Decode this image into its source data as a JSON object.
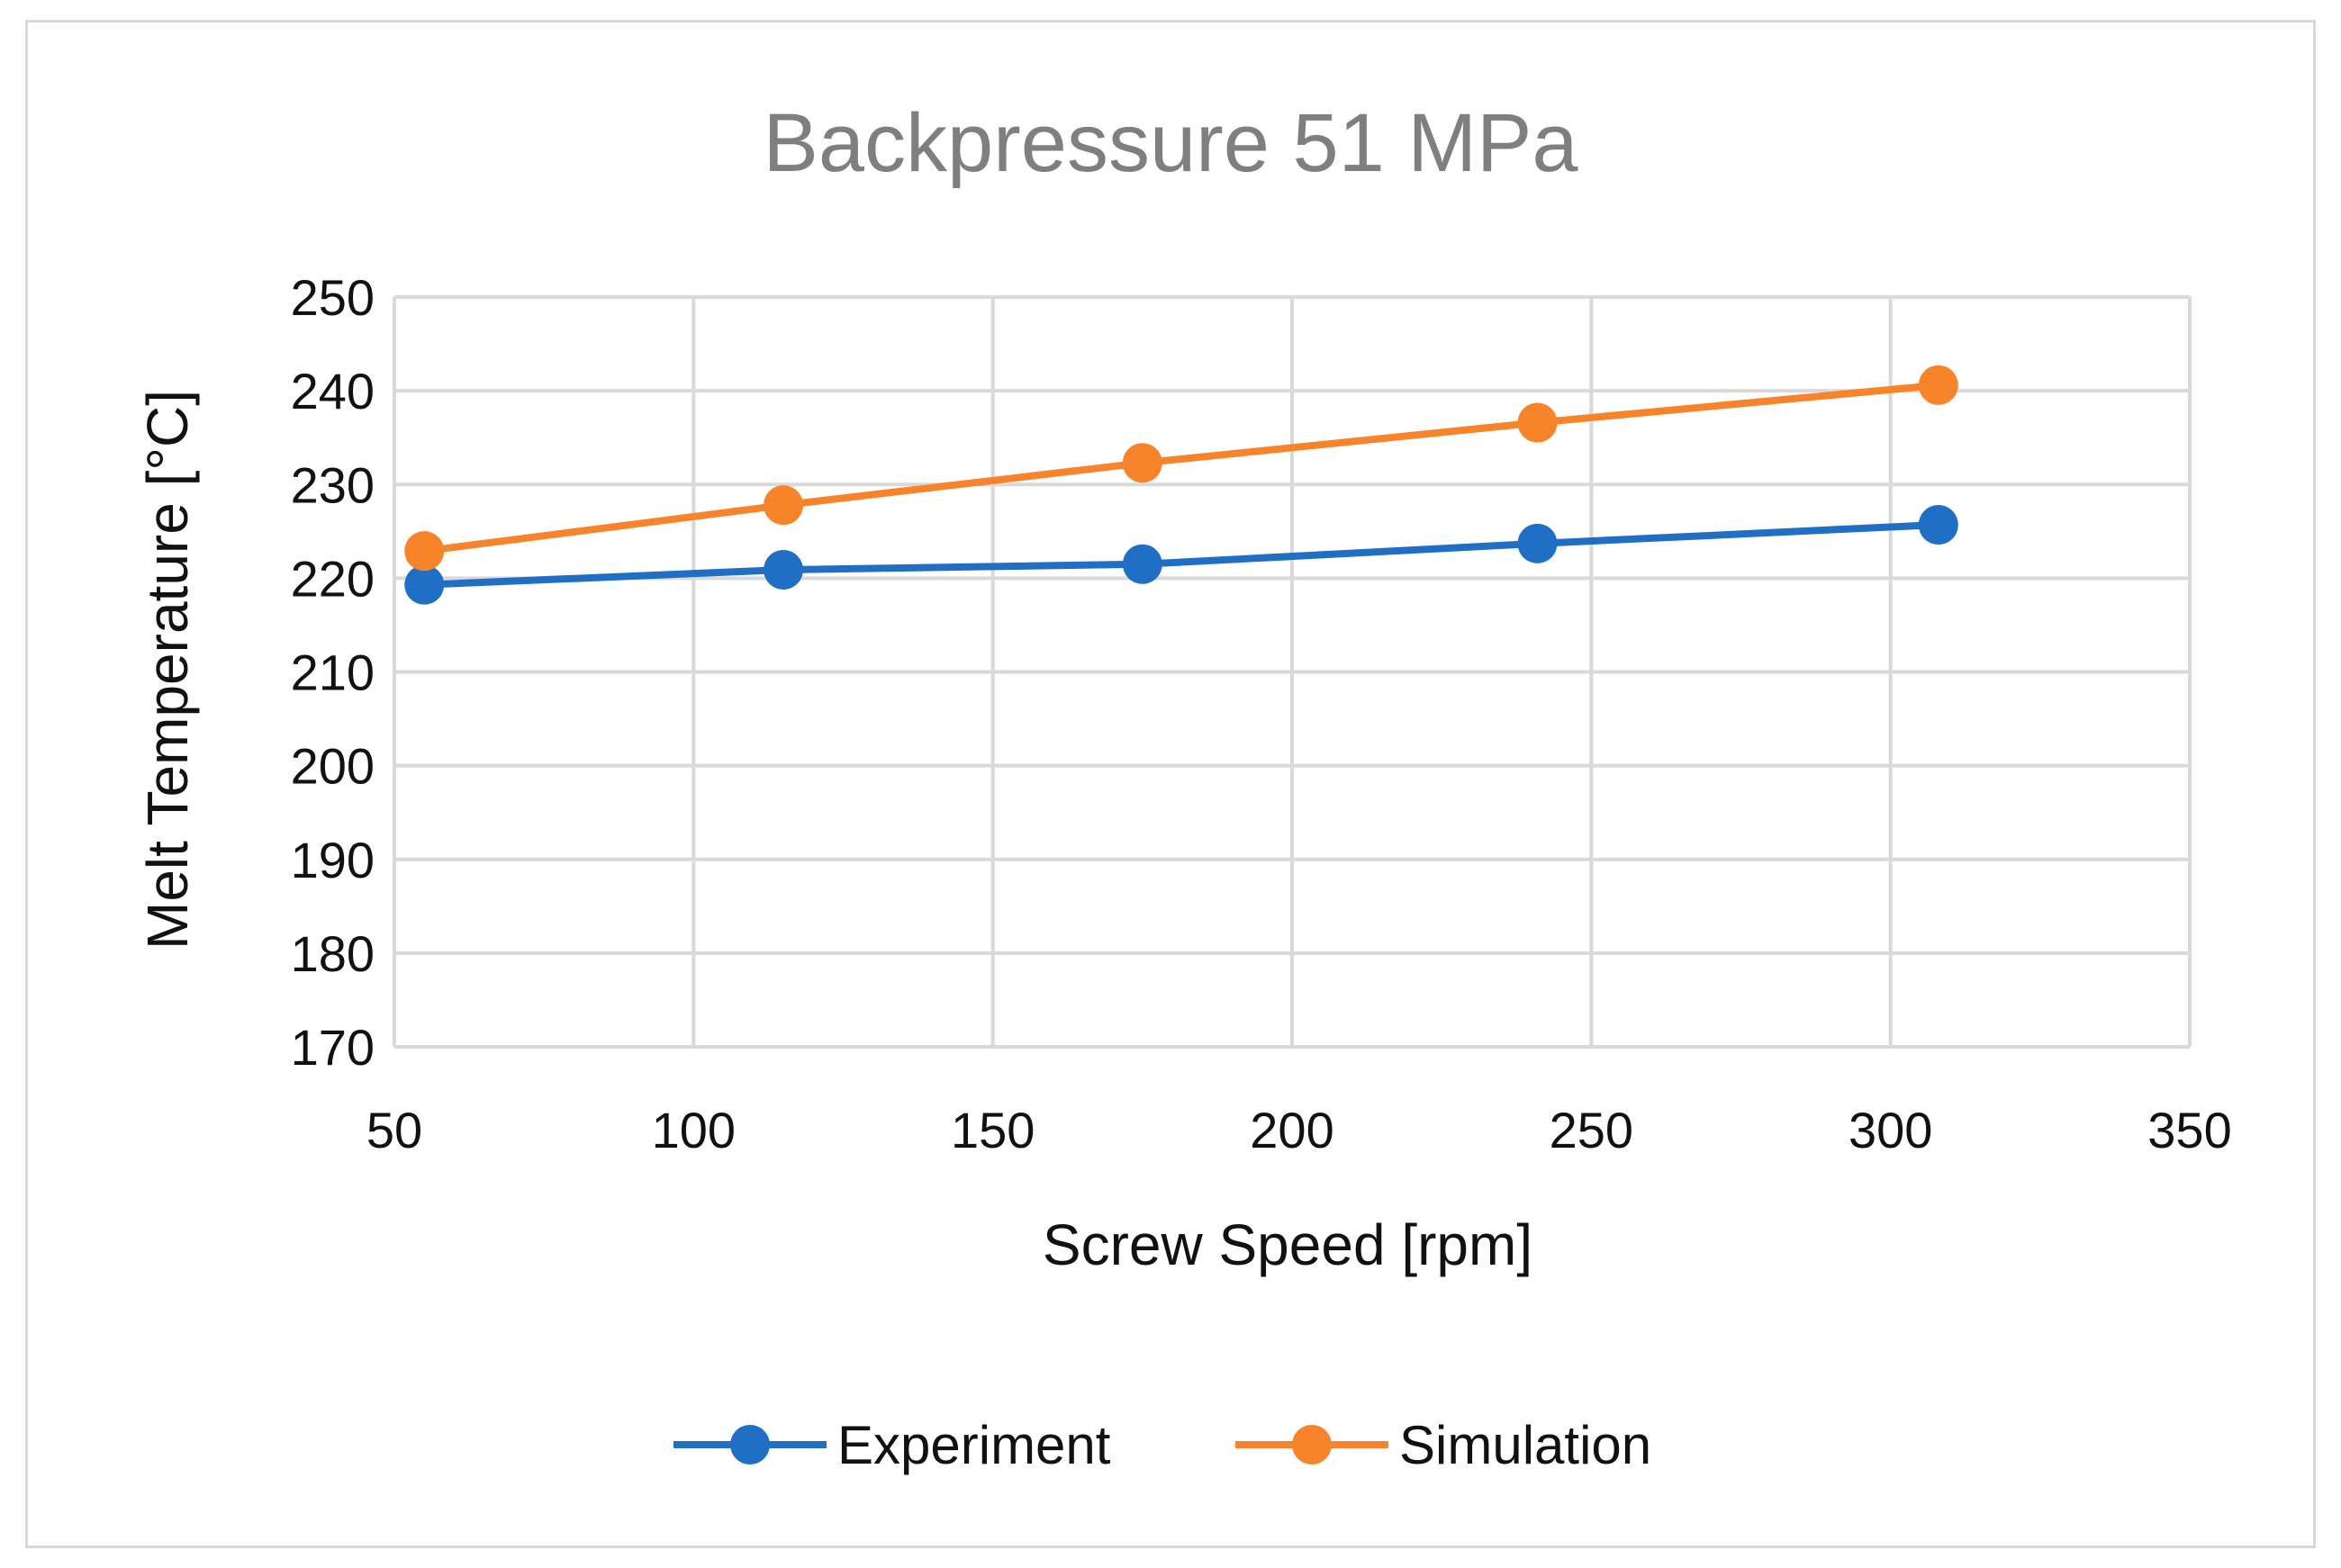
{
  "chart_data": {
    "type": "line",
    "title": "Backpressure 51 MPa",
    "xlabel": "Screw Speed [rpm]",
    "ylabel": "Melt Temperature [°C]",
    "xlim": [
      50,
      350
    ],
    "ylim": [
      170,
      250
    ],
    "xticks": [
      50,
      100,
      150,
      200,
      250,
      300,
      350
    ],
    "yticks": [
      170,
      180,
      190,
      200,
      210,
      220,
      230,
      240,
      250
    ],
    "grid": true,
    "legend_position": "bottom",
    "series": [
      {
        "name": "Experiment",
        "color": "#1f6fc5",
        "x": [
          55,
          115,
          175,
          241,
          308
        ],
        "y": [
          219.3,
          220.9,
          221.5,
          223.7,
          225.7
        ]
      },
      {
        "name": "Simulation",
        "color": "#f7842a",
        "x": [
          55,
          115,
          175,
          241,
          308
        ],
        "y": [
          222.9,
          227.8,
          232.3,
          236.6,
          240.6
        ]
      }
    ]
  }
}
